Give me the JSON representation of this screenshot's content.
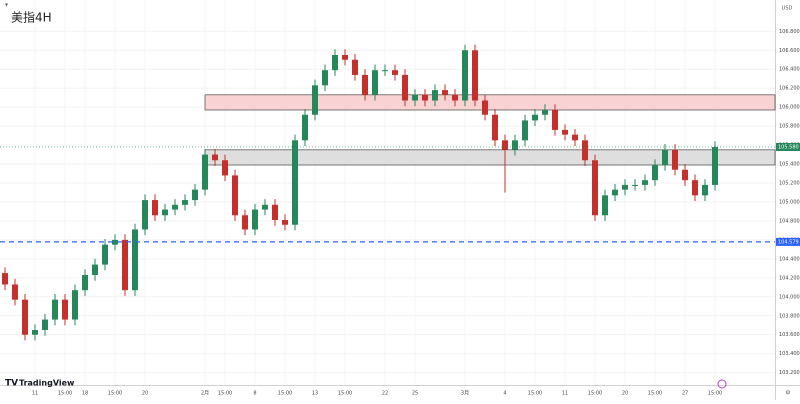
{
  "chart_data": {
    "type": "candlestick",
    "title": "美指4H",
    "currency": "USD",
    "brand": "TradingView",
    "up_color": "#26875a",
    "down_color": "#c4302b",
    "categories": [
      null,
      null,
      null,
      "11",
      null,
      null,
      "15:00",
      null,
      "18",
      null,
      null,
      "15:00",
      null,
      null,
      "20",
      null,
      null,
      null,
      null,
      null,
      "2月",
      null,
      "15:00",
      null,
      null,
      "8",
      null,
      null,
      "15:00",
      null,
      null,
      "13",
      null,
      null,
      "15:00",
      null,
      null,
      null,
      "22",
      null,
      null,
      "25",
      null,
      null,
      null,
      null,
      "3月",
      null,
      null,
      null,
      "4",
      null,
      null,
      "15:00",
      null,
      null,
      "11",
      null,
      null,
      "15:00",
      null,
      null,
      "20",
      null,
      null,
      "15:00",
      null,
      null,
      "27",
      null,
      null,
      "15:00"
    ],
    "open": [
      104.25,
      104.13,
      103.97,
      103.6,
      103.65,
      103.76,
      103.97,
      103.76,
      104.07,
      104.23,
      104.34,
      104.55,
      104.6,
      104.07,
      104.71,
      105.02,
      104.86,
      104.92,
      104.97,
      105.02,
      105.13,
      105.5,
      105.44,
      105.28,
      104.86,
      104.71,
      104.92,
      104.97,
      104.81,
      104.76,
      105.65,
      105.92,
      106.23,
      106.39,
      106.55,
      106.5,
      106.34,
      106.13,
      106.39,
      106.39,
      106.34,
      106.07,
      106.13,
      106.07,
      106.18,
      106.13,
      106.07,
      106.6,
      106.07,
      105.92,
      105.65,
      105.55,
      105.65,
      105.86,
      105.92,
      105.97,
      105.76,
      105.71,
      105.65,
      105.44,
      104.86,
      105.07,
      105.13,
      105.18,
      105.18,
      105.23,
      105.39,
      105.55,
      105.34,
      105.23,
      105.07,
      105.18
    ],
    "high": [
      104.31,
      104.19,
      104.03,
      103.71,
      103.82,
      104.03,
      104.03,
      104.13,
      104.29,
      104.4,
      104.61,
      104.66,
      104.66,
      104.77,
      105.08,
      105.08,
      104.98,
      105.03,
      105.08,
      105.19,
      105.56,
      105.56,
      105.5,
      105.34,
      104.92,
      104.98,
      105.03,
      105.03,
      104.87,
      105.71,
      105.98,
      106.29,
      106.45,
      106.61,
      106.61,
      106.56,
      106.4,
      106.45,
      106.45,
      106.45,
      106.4,
      106.19,
      106.19,
      106.24,
      106.24,
      106.19,
      106.66,
      106.66,
      106.13,
      105.98,
      105.71,
      105.71,
      105.92,
      105.98,
      106.03,
      106.03,
      105.82,
      105.77,
      105.71,
      105.5,
      105.13,
      105.19,
      105.24,
      105.24,
      105.29,
      105.45,
      105.61,
      105.61,
      105.4,
      105.29,
      105.24,
      105.64
    ],
    "low": [
      104.07,
      103.91,
      103.54,
      103.54,
      103.59,
      103.7,
      103.7,
      103.7,
      104.01,
      104.17,
      104.28,
      104.49,
      104.01,
      104.01,
      104.65,
      104.8,
      104.8,
      104.86,
      104.91,
      104.96,
      105.07,
      105.38,
      105.22,
      104.8,
      104.65,
      104.65,
      104.86,
      104.75,
      104.7,
      104.7,
      105.59,
      105.86,
      106.17,
      106.33,
      106.44,
      106.28,
      106.07,
      106.07,
      106.33,
      106.28,
      106.01,
      106.01,
      106.01,
      106.01,
      106.07,
      106.01,
      106.01,
      106.01,
      105.86,
      105.59,
      105.1,
      105.49,
      105.59,
      105.8,
      105.86,
      105.7,
      105.65,
      105.59,
      105.38,
      104.8,
      104.8,
      105.01,
      105.07,
      105.12,
      105.12,
      105.17,
      105.33,
      105.28,
      105.17,
      105.01,
      105.01,
      105.12
    ],
    "close": [
      104.13,
      103.97,
      103.6,
      103.65,
      103.76,
      103.97,
      103.76,
      104.07,
      104.23,
      104.34,
      104.55,
      104.6,
      104.07,
      104.71,
      105.02,
      104.86,
      104.92,
      104.97,
      105.02,
      105.13,
      105.5,
      105.44,
      105.28,
      104.86,
      104.71,
      104.92,
      104.97,
      104.81,
      104.76,
      105.65,
      105.92,
      106.23,
      106.39,
      106.55,
      106.5,
      106.34,
      106.13,
      106.39,
      106.39,
      106.34,
      106.07,
      106.13,
      106.07,
      106.18,
      106.13,
      106.07,
      106.6,
      106.07,
      105.92,
      105.65,
      105.55,
      105.65,
      105.86,
      105.92,
      105.97,
      105.76,
      105.71,
      105.65,
      105.44,
      104.86,
      105.07,
      105.13,
      105.18,
      105.18,
      105.23,
      105.39,
      105.55,
      105.34,
      105.23,
      105.07,
      105.18,
      105.58
    ],
    "ylim": [
      103.07,
      107.13
    ],
    "yticks": [
      {
        "value": 106.8,
        "label": "106.800"
      },
      {
        "value": 106.6,
        "label": "106.600"
      },
      {
        "value": 106.4,
        "label": "106.400"
      },
      {
        "value": 106.2,
        "label": "106.200"
      },
      {
        "value": 106,
        "label": "106.000"
      },
      {
        "value": 105.8,
        "label": "105.800"
      },
      {
        "value": 105.6,
        "label": "105.600"
      },
      {
        "value": 105.4,
        "label": "105.400"
      },
      {
        "value": 105.2,
        "label": "105.200"
      },
      {
        "value": 105,
        "label": "105.000"
      },
      {
        "value": 104.8,
        "label": "104.800"
      },
      {
        "value": 104.6,
        "label": "104.600"
      },
      {
        "value": 104.4,
        "label": "104.400"
      },
      {
        "value": 104.2,
        "label": "104.200"
      },
      {
        "value": 104,
        "label": "104.000"
      },
      {
        "value": 103.8,
        "label": "103.800"
      },
      {
        "value": 103.6,
        "label": "103.600"
      },
      {
        "value": 103.4,
        "label": "103.400"
      },
      {
        "value": 103.2,
        "label": "103.200"
      }
    ],
    "zones": [
      {
        "low": 105.97,
        "high": 106.13,
        "color": "#f9d3d3",
        "border": "#444444"
      },
      {
        "low": 105.39,
        "high": 105.55,
        "color": "#dedede",
        "border": "#444444"
      }
    ],
    "levels": [
      {
        "value": 104.579,
        "color": "#2962ff",
        "dashed": true
      }
    ],
    "last_price": {
      "value": 105.58,
      "label": "105.580",
      "color": "#26875a"
    }
  }
}
